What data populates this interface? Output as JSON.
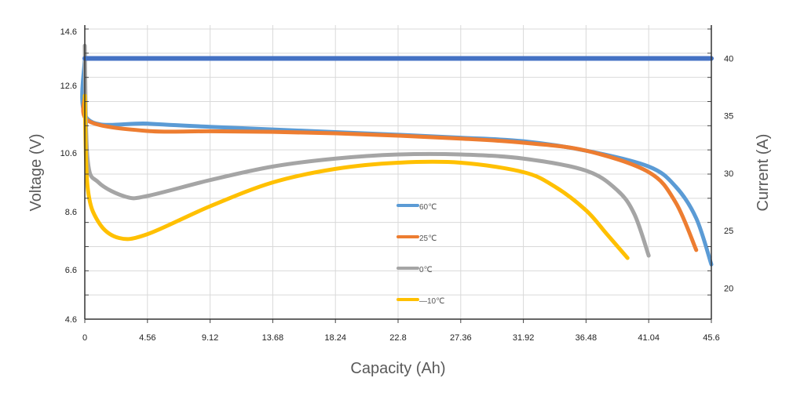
{
  "chart_data": {
    "type": "line",
    "xlabel": "Capacity (Ah)",
    "ylabel": "Voltage (V)",
    "y2label": "Current (A)",
    "xlim": [
      0,
      45.6
    ],
    "ylim": [
      4.6,
      14.6
    ],
    "y2lim": [
      17.3,
      42.9
    ],
    "xticks": [
      "0",
      "4.56",
      "9.12",
      "13.68",
      "18.24",
      "22.8",
      "27.36",
      "31.92",
      "36.48",
      "41.04",
      "45.6"
    ],
    "yticks": [
      "4.6",
      "6.6",
      "8.6",
      "10.6",
      "12.6",
      "14.6"
    ],
    "y2ticks": [
      "20",
      "25",
      "30",
      "35",
      "40"
    ],
    "grid": true,
    "legend_position": "center",
    "series": [
      {
        "name": "60℃",
        "color": "#5b9bd5",
        "axis": "left",
        "points": [
          [
            0,
            13.5
          ],
          [
            0.2,
            11.41
          ],
          [
            4.56,
            11.25
          ],
          [
            9.12,
            11.14
          ],
          [
            13.68,
            11.05
          ],
          [
            18.24,
            10.96
          ],
          [
            22.8,
            10.87
          ],
          [
            27.36,
            10.77
          ],
          [
            31.92,
            10.65
          ],
          [
            36.48,
            10.33
          ],
          [
            41.04,
            9.79
          ],
          [
            43,
            9.11
          ],
          [
            44.5,
            8.03
          ],
          [
            45.6,
            6.46
          ]
        ]
      },
      {
        "name": "25℃",
        "color": "#ed7d31",
        "axis": "left",
        "points": [
          [
            0,
            12.2
          ],
          [
            0.3,
            11.33
          ],
          [
            4.56,
            11.0
          ],
          [
            9.12,
            10.99
          ],
          [
            13.68,
            10.97
          ],
          [
            18.24,
            10.92
          ],
          [
            22.8,
            10.84
          ],
          [
            27.36,
            10.74
          ],
          [
            31.92,
            10.6
          ],
          [
            36.48,
            10.33
          ],
          [
            41.04,
            9.6
          ],
          [
            43,
            8.57
          ],
          [
            44.5,
            6.95
          ]
        ]
      },
      {
        "name": "0℃",
        "color": "#a5a5a5",
        "axis": "left",
        "points": [
          [
            0,
            13.9
          ],
          [
            0.2,
            10.06
          ],
          [
            1,
            9.25
          ],
          [
            3,
            8.76
          ],
          [
            4.56,
            8.79
          ],
          [
            9.12,
            9.33
          ],
          [
            13.68,
            9.79
          ],
          [
            18.24,
            10.06
          ],
          [
            22.8,
            10.2
          ],
          [
            27.36,
            10.2
          ],
          [
            31.92,
            10.06
          ],
          [
            36.48,
            9.65
          ],
          [
            38.76,
            8.98
          ],
          [
            40,
            8.17
          ],
          [
            41.04,
            6.76
          ]
        ]
      },
      {
        "name": "—10℃",
        "color": "#ffc000",
        "axis": "left",
        "points": [
          [
            0,
            12.2
          ],
          [
            0.2,
            9.11
          ],
          [
            1,
            7.9
          ],
          [
            2.5,
            7.36
          ],
          [
            4.56,
            7.49
          ],
          [
            9.12,
            8.44
          ],
          [
            13.68,
            9.25
          ],
          [
            18.24,
            9.71
          ],
          [
            22.8,
            9.92
          ],
          [
            27.36,
            9.92
          ],
          [
            31.92,
            9.6
          ],
          [
            34.2,
            9.11
          ],
          [
            36.48,
            8.3
          ],
          [
            38,
            7.49
          ],
          [
            39.5,
            6.68
          ]
        ]
      },
      {
        "color": "#4472c4",
        "axis": "right",
        "points": [
          [
            0,
            40
          ],
          [
            45.6,
            40
          ]
        ]
      }
    ]
  }
}
